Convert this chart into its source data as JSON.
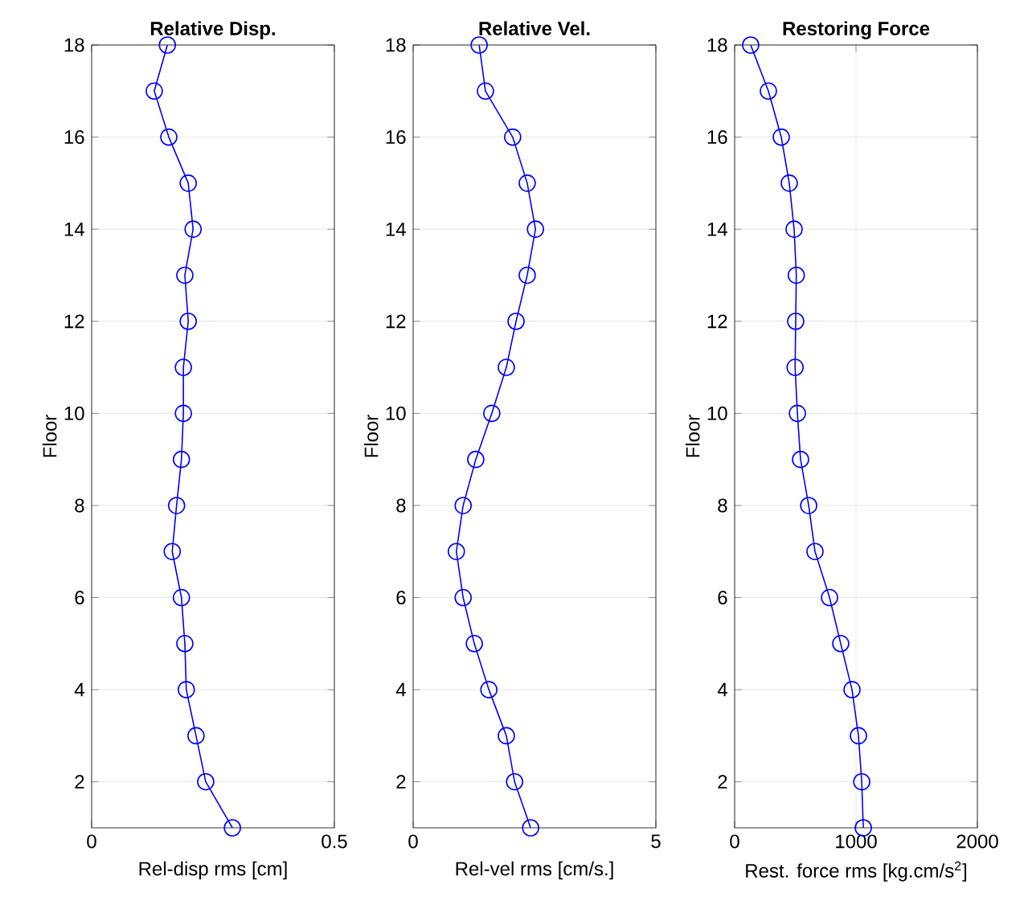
{
  "chart_data": [
    {
      "type": "line",
      "title": "Relative Disp.",
      "xlabel": "Rel-disp rms [cm]",
      "ylabel": "Floor",
      "xlim": [
        0,
        0.5
      ],
      "xticks": [
        0,
        0.5
      ],
      "ylim": [
        1,
        18
      ],
      "yticks": [
        2,
        4,
        6,
        8,
        10,
        12,
        14,
        16,
        18
      ],
      "grid": true,
      "marker": "circle",
      "line_style": "solid",
      "series": [
        {
          "color": "#0000ff",
          "x": [
            0.29,
            0.235,
            0.215,
            0.195,
            0.192,
            0.185,
            0.166,
            0.175,
            0.185,
            0.189,
            0.189,
            0.199,
            0.192,
            0.209,
            0.199,
            0.159,
            0.129,
            0.156
          ],
          "values": [
            1,
            2,
            3,
            4,
            5,
            6,
            7,
            8,
            9,
            10,
            11,
            12,
            13,
            14,
            15,
            16,
            17,
            18
          ]
        }
      ]
    },
    {
      "type": "line",
      "title": "Relative Vel.",
      "xlabel": "Rel-vel rms [cm/s.]",
      "ylabel": "Floor",
      "xlim": [
        0,
        5
      ],
      "xticks": [
        0,
        5
      ],
      "ylim": [
        1,
        18
      ],
      "yticks": [
        2,
        4,
        6,
        8,
        10,
        12,
        14,
        16,
        18
      ],
      "grid": true,
      "marker": "circle",
      "line_style": "solid",
      "series": [
        {
          "color": "#0000ff",
          "x": [
            2.42,
            2.09,
            1.92,
            1.56,
            1.26,
            1.03,
            0.89,
            1.03,
            1.29,
            1.62,
            1.92,
            2.12,
            2.35,
            2.52,
            2.35,
            2.05,
            1.49,
            1.36
          ],
          "values": [
            1,
            2,
            3,
            4,
            5,
            6,
            7,
            8,
            9,
            10,
            11,
            12,
            13,
            14,
            15,
            16,
            17,
            18
          ]
        }
      ]
    },
    {
      "type": "line",
      "title": "Restoring Force",
      "xlabel": "Rest. force rms [kg.cm/s$^{2}$]",
      "ylabel": "Floor",
      "xlim": [
        0,
        2000
      ],
      "xticks": [
        0,
        1000,
        2000
      ],
      "ylim": [
        1,
        18
      ],
      "yticks": [
        2,
        4,
        6,
        8,
        10,
        12,
        14,
        16,
        18
      ],
      "grid": true,
      "marker": "circle",
      "line_style": "solid",
      "series": [
        {
          "color": "#0000ff",
          "x": [
            1060,
            1047,
            1020,
            967,
            874,
            782,
            662,
            610,
            543,
            517,
            498,
            503,
            508,
            490,
            450,
            384,
            278,
            132
          ],
          "values": [
            1,
            2,
            3,
            4,
            5,
            6,
            7,
            8,
            9,
            10,
            11,
            12,
            13,
            14,
            15,
            16,
            17,
            18
          ]
        }
      ]
    }
  ]
}
